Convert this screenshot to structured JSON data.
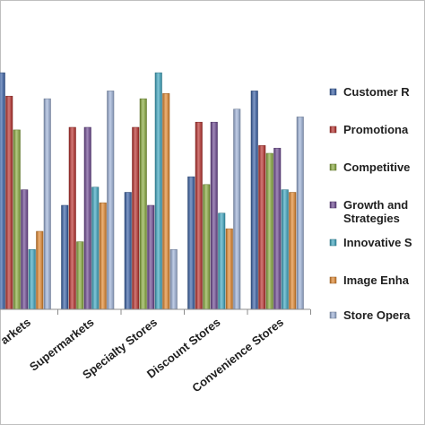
{
  "chart_data": {
    "type": "bar",
    "title": "",
    "xlabel": "",
    "ylabel": "",
    "ylim": [
      0,
      100
    ],
    "grid": false,
    "legend_position": "right",
    "categories": [
      "Hypermarkets",
      "Supermarkets",
      "Specialty Stores",
      "Discount Stores",
      "Convenience Stores"
    ],
    "category_labels": [
      "arkets",
      "Supermarkets",
      "Specialty Stores",
      "Discount Stores",
      "Convenience Stores"
    ],
    "series": [
      {
        "name": "Customer Relationship",
        "display": "Customer R",
        "color": "#3a62a7",
        "values": [
          91,
          40,
          45,
          51,
          84
        ]
      },
      {
        "name": "Promotional Strategies",
        "display": "Promotiona",
        "color": "#b9312d",
        "values": [
          82,
          70,
          70,
          72,
          63
        ]
      },
      {
        "name": "Competitive Strategies",
        "display": "Competitive",
        "color": "#8aac3e",
        "values": [
          69,
          26,
          81,
          48,
          60
        ]
      },
      {
        "name": "Growth and Development Strategies",
        "display": "Growth and",
        "display2": "Strategies",
        "color": "#6e4a93",
        "values": [
          46,
          70,
          40,
          72,
          62
        ]
      },
      {
        "name": "Innovative Strategies",
        "display": "Innovative S",
        "color": "#3ea8c2",
        "values": [
          23,
          47,
          91,
          37,
          46
        ]
      },
      {
        "name": "Image Enhancement",
        "display": "Image Enha",
        "color": "#e3892f",
        "values": [
          30,
          41,
          83,
          31,
          45
        ]
      },
      {
        "name": "Store Operations",
        "display": "Store Opera",
        "color": "#9fb4da",
        "values": [
          81,
          84,
          23,
          77,
          74
        ]
      }
    ]
  }
}
